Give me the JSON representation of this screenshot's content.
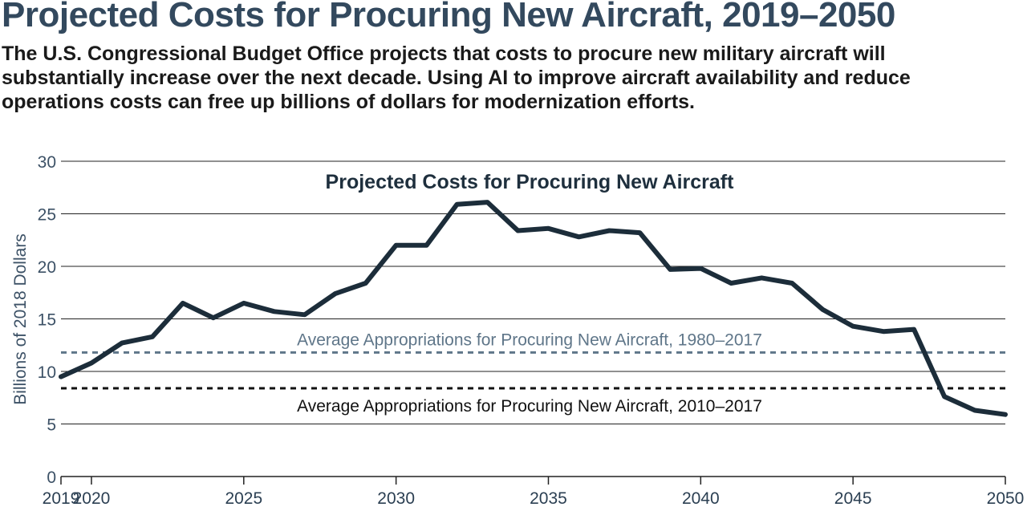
{
  "header": {
    "title": "Projected Costs for Procuring New Aircraft, 2019–2050",
    "subtitle": "The U.S. Congressional Budget Office projects that costs to procure new military aircraft will substantially increase over the next decade. Using AI to improve aircraft availability and reduce operations costs can free up billions of dollars for modernization efforts."
  },
  "colors": {
    "title": "#33495e",
    "axis_text": "#3c5166",
    "series_line": "#1c2d3a",
    "reference_1980_2017": "#5f7689",
    "reference_2010_2017": "#111111",
    "gridline": "#222222"
  },
  "chart_data": {
    "type": "line",
    "title": "Projected Costs for Procuring New Aircraft",
    "xlabel": "",
    "ylabel": "Billions of 2018 Dollars",
    "xlim": [
      2019,
      2050
    ],
    "ylim": [
      0,
      30
    ],
    "grid": true,
    "x_ticks": [
      2019,
      2020,
      2025,
      2030,
      2035,
      2040,
      2045,
      2050
    ],
    "x_tick_labels": [
      "2019",
      "2020",
      "2025",
      "2030",
      "2035",
      "2040",
      "2045",
      "2050"
    ],
    "y_ticks": [
      0,
      5,
      10,
      15,
      20,
      25,
      30
    ],
    "y_tick_labels": [
      "0",
      "5",
      "10",
      "15",
      "20",
      "25",
      "30"
    ],
    "series": [
      {
        "x": [
          2019,
          2020,
          2021,
          2022,
          2023,
          2024,
          2025,
          2026,
          2027,
          2028,
          2029,
          2030,
          2031,
          2032,
          2033,
          2034,
          2035,
          2036,
          2037,
          2038,
          2039,
          2040,
          2041,
          2042,
          2043,
          2044,
          2045,
          2046,
          2047,
          2048,
          2049,
          2050
        ],
        "values": [
          9.5,
          10.8,
          12.7,
          13.3,
          16.5,
          15.1,
          16.5,
          15.7,
          15.4,
          17.4,
          18.4,
          22.0,
          22.0,
          25.9,
          26.1,
          23.4,
          23.6,
          22.8,
          23.4,
          23.2,
          19.7,
          19.8,
          18.4,
          18.9,
          18.4,
          15.9,
          14.3,
          13.8,
          14.0,
          7.6,
          6.3,
          5.9
        ]
      }
    ],
    "reference_lines": [
      {
        "label": "Average Appropriations for Procuring New Aircraft, 1980–2017",
        "value": 11.8,
        "style": "dashed",
        "label_position": "above"
      },
      {
        "label": "Average Appropriations for Procuring New Aircraft, 2010–2017",
        "value": 8.4,
        "style": "dashed",
        "label_position": "below"
      }
    ]
  }
}
